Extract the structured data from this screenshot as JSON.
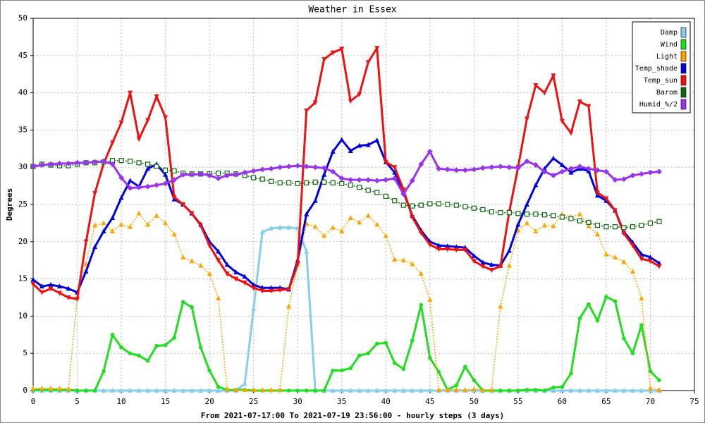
{
  "chart_data": {
    "type": "line",
    "title": "Weather in Essex",
    "x_label": "From 2021-07-17:00 To 2021-07-19 23:56:00 - hourly steps (3 days)",
    "y_label": "Degrees",
    "x": [
      0,
      1,
      2,
      3,
      4,
      5,
      6,
      7,
      8,
      9,
      10,
      11,
      12,
      13,
      14,
      15,
      16,
      17,
      18,
      19,
      20,
      21,
      22,
      23,
      24,
      25,
      26,
      27,
      28,
      29,
      30,
      31,
      32,
      33,
      34,
      35,
      36,
      37,
      38,
      39,
      40,
      41,
      42,
      43,
      44,
      45,
      46,
      47,
      48,
      49,
      50,
      51,
      52,
      53,
      54,
      55,
      56,
      57,
      58,
      59,
      60,
      61,
      62,
      63,
      64,
      65,
      66,
      67,
      68,
      69,
      70,
      71
    ],
    "xlim": [
      0,
      75
    ],
    "xticks": [
      0,
      5,
      10,
      15,
      20,
      25,
      30,
      35,
      40,
      45,
      50,
      55,
      60,
      65,
      70,
      75
    ],
    "ylim": [
      0,
      50
    ],
    "yticks": [
      0,
      5,
      10,
      15,
      20,
      25,
      30,
      35,
      40,
      45,
      50
    ],
    "grid": true,
    "legend": "top-right",
    "series": [
      {
        "name": "Damp",
        "color": "#87ceeb",
        "marker": "triangle-up",
        "line_style": "solid",
        "values": [
          0,
          0,
          0,
          0,
          0,
          0,
          0,
          0,
          0,
          0,
          0,
          0,
          0,
          0,
          0,
          0,
          0,
          0,
          0,
          0,
          0,
          0,
          0,
          0,
          0.9,
          11,
          21.3,
          21.8,
          21.9,
          21.9,
          21.8,
          18.7,
          0,
          0,
          0,
          0,
          0,
          0,
          0,
          0,
          0,
          0,
          0,
          0,
          0,
          0,
          0,
          0,
          0,
          0,
          0,
          0,
          0,
          0,
          0,
          0,
          0,
          0,
          0,
          0,
          0,
          0,
          0,
          0,
          0,
          0,
          0,
          0,
          0,
          0,
          0,
          0
        ]
      },
      {
        "name": "Wind",
        "color": "#22dd22",
        "marker": "circle",
        "line_style": "solid",
        "values": [
          0.1,
          0.1,
          0.1,
          0.1,
          0.1,
          0,
          0,
          0,
          2.6,
          7.5,
          5.8,
          5,
          4.7,
          4,
          6,
          6.1,
          7.1,
          11.9,
          11.2,
          5.8,
          2.7,
          0.5,
          0.1,
          0.1,
          0.1,
          0,
          0,
          0,
          0,
          0,
          0,
          0,
          0,
          0,
          2.7,
          2.7,
          3,
          4.7,
          5,
          6.3,
          6.4,
          3.7,
          2.9,
          6.7,
          11.5,
          4.4,
          2.5,
          0.1,
          0.7,
          3.2,
          1.4,
          0,
          0,
          0,
          0,
          0,
          0.1,
          0.1,
          0,
          0.4,
          0.5,
          2.3,
          9.7,
          11.6,
          9.4,
          12.6,
          12,
          7,
          5,
          8.8,
          2.6,
          1.4
        ]
      },
      {
        "name": "Light",
        "color": "#ffa500",
        "marker": "triangle-up",
        "line_style": "dotted",
        "values": [
          0.3,
          0.3,
          0.3,
          0.3,
          0.2,
          12.5,
          17,
          22.2,
          22.5,
          21.4,
          22.3,
          22,
          23.8,
          22.3,
          23.5,
          22.5,
          21,
          17.9,
          17.4,
          16.8,
          15.7,
          12.4,
          0.2,
          0.1,
          0.1,
          0.1,
          0.1,
          0.1,
          0.1,
          11.3,
          16.9,
          22.4,
          22,
          20.8,
          21.9,
          21.4,
          23.2,
          22.6,
          23.5,
          22.3,
          20.8,
          17.6,
          17.5,
          17,
          15.7,
          12.2,
          0.1,
          0.1,
          0.1,
          0.1,
          0.2,
          0.1,
          0.1,
          11.3,
          16.8,
          21.5,
          22.5,
          21.4,
          22.2,
          22.1,
          23.7,
          23.3,
          23.7,
          22.1,
          21,
          18.3,
          17.9,
          17.3,
          16,
          12.4,
          0.3,
          0.1
        ]
      },
      {
        "name": "Temp_shade",
        "color": "#0000dd",
        "marker": "triangle-up",
        "line_style": "solid",
        "values": [
          14.9,
          14,
          14.2,
          14,
          13.7,
          13.2,
          16,
          19.3,
          21.4,
          23.2,
          25.9,
          28.2,
          27.4,
          29.8,
          30.4,
          29,
          25.7,
          25,
          23.8,
          22.3,
          20,
          18.7,
          16.9,
          15.9,
          15.3,
          14.2,
          13.8,
          13.8,
          13.8,
          13.6,
          17.5,
          23.7,
          25.5,
          29,
          32.1,
          33.7,
          32.2,
          32.9,
          33,
          33.6,
          30.7,
          29.3,
          26.7,
          23.5,
          21.5,
          20,
          19.5,
          19.4,
          19.3,
          19.2,
          18.1,
          17.2,
          16.9,
          16.8,
          18.8,
          22.3,
          25,
          27.6,
          29.8,
          31.2,
          30.3,
          29.3,
          29.8,
          29.5,
          26.2,
          25.5,
          24.2,
          21.3,
          19.9,
          18.3,
          17.9,
          17.1
        ]
      },
      {
        "name": "Temp_sun",
        "color": "#ee1111",
        "marker": "triangle-down",
        "line_style": "solid",
        "values": [
          14.3,
          13.2,
          13.7,
          13.1,
          12.5,
          12.3,
          20,
          26.5,
          30.5,
          33.3,
          36,
          40,
          33.8,
          36.3,
          39.5,
          36.7,
          26,
          25,
          23.8,
          22.2,
          19.5,
          17.5,
          15.7,
          15,
          14.5,
          13.8,
          13.4,
          13.4,
          13.5,
          13.6,
          17,
          37.6,
          38.7,
          44.5,
          45.4,
          45.9,
          38.9,
          39.8,
          44.1,
          46,
          30.7,
          30,
          27,
          23.3,
          21.2,
          19.6,
          19,
          19,
          18.9,
          18.9,
          17.4,
          16.7,
          16.2,
          16.7,
          24,
          30,
          36.5,
          41,
          40,
          42.3,
          36.2,
          34.6,
          38.8,
          38.2,
          26.6,
          25.8,
          24.2,
          21.1,
          19.5,
          17.7,
          17.4,
          16.7
        ]
      },
      {
        "name": "Barom",
        "color": "#116611",
        "marker": "square",
        "line_style": "dotted",
        "values": [
          30.1,
          30.4,
          30.3,
          30.2,
          30.2,
          30.4,
          30.6,
          30.6,
          30.7,
          30.9,
          30.9,
          30.8,
          30.6,
          30.4,
          30.1,
          29.6,
          29.5,
          29.2,
          29.1,
          29.1,
          29.1,
          29.2,
          29.2,
          29.1,
          28.9,
          28.6,
          28.4,
          28.1,
          27.9,
          27.9,
          27.8,
          27.9,
          28,
          28,
          27.9,
          27.8,
          27.6,
          27.3,
          26.9,
          26.6,
          26.1,
          25.5,
          24.9,
          24.8,
          24.9,
          25.1,
          25.1,
          25,
          24.9,
          24.7,
          24.5,
          24.3,
          24,
          23.9,
          23.9,
          23.8,
          23.7,
          23.7,
          23.6,
          23.5,
          23.3,
          23.1,
          22.8,
          22.6,
          22.2,
          22,
          22,
          21.9,
          22,
          22.2,
          22.5,
          22.7
        ]
      },
      {
        "name": "Humid_%/2",
        "color": "#9933ee",
        "marker": "diamond",
        "line_style": "solid",
        "values": [
          30.1,
          30.3,
          30.4,
          30.5,
          30.5,
          30.6,
          30.6,
          30.7,
          30.8,
          30.4,
          28.6,
          27.2,
          27.3,
          27.4,
          27.6,
          27.8,
          28.3,
          29,
          29,
          29.1,
          28.9,
          28.5,
          28.9,
          29,
          29.3,
          29.5,
          29.7,
          29.8,
          30,
          30.1,
          30.2,
          30.1,
          30,
          29.9,
          29.4,
          28.5,
          28.3,
          28.3,
          28.3,
          28.2,
          28.3,
          28.5,
          26.4,
          28.2,
          30.4,
          32.1,
          29.8,
          29.7,
          29.6,
          29.6,
          29.7,
          29.9,
          30,
          30.1,
          30,
          29.9,
          30.8,
          30.3,
          29.4,
          28.9,
          29.4,
          29.8,
          30.1,
          29.8,
          29.6,
          29.4,
          28.3,
          28.4,
          28.9,
          29.1,
          29.3,
          29.4
        ]
      }
    ]
  }
}
